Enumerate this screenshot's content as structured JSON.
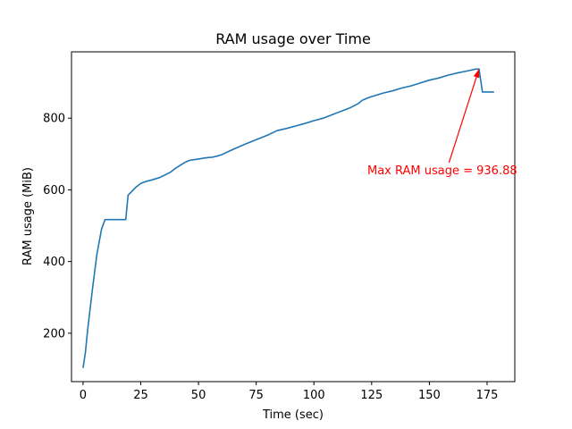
{
  "chart_data": {
    "type": "line",
    "title": "RAM usage over Time",
    "xlabel": "Time (sec)",
    "ylabel": "RAM usage (MiB)",
    "xlim": [
      -5,
      187
    ],
    "ylim": [
      65,
      985
    ],
    "xticks": [
      0,
      25,
      50,
      75,
      100,
      125,
      150,
      175
    ],
    "yticks": [
      200,
      400,
      600,
      800
    ],
    "grid": false,
    "series": [
      {
        "color": "#1f77b4",
        "x": [
          0,
          1,
          2,
          4,
          6,
          8,
          9.5,
          12,
          15,
          18.5,
          19.5,
          21,
          23,
          25,
          27,
          30,
          33,
          35,
          38,
          40,
          42,
          44,
          46,
          48,
          50,
          52,
          54,
          56,
          58,
          60,
          62,
          65,
          70,
          75,
          80,
          84,
          88,
          92,
          96,
          100,
          104,
          108,
          112,
          116,
          119,
          121,
          124,
          127,
          130,
          134,
          138,
          142,
          146,
          150,
          154,
          158,
          162,
          165,
          168,
          170,
          171.5,
          173,
          175,
          178
        ],
        "y": [
          103,
          145,
          210,
          320,
          420,
          490,
          517,
          517,
          517,
          517,
          585,
          595,
          608,
          618,
          623,
          628,
          634,
          640,
          650,
          660,
          668,
          676,
          682,
          684,
          686,
          688,
          690,
          691,
          694,
          698,
          704,
          713,
          727,
          740,
          753,
          765,
          771,
          778,
          785,
          793,
          800,
          810,
          820,
          830,
          840,
          850,
          858,
          864,
          870,
          876,
          884,
          890,
          898,
          906,
          912,
          920,
          926,
          930,
          934,
          936.88,
          936.88,
          873,
          873,
          873
        ]
      }
    ],
    "annotations": [
      {
        "text": "Max RAM usage = 936.88",
        "color": "#ff0000",
        "point": [
          171.5,
          936.88
        ],
        "text_anchor_point": [
          158.5,
          676
        ]
      }
    ]
  }
}
